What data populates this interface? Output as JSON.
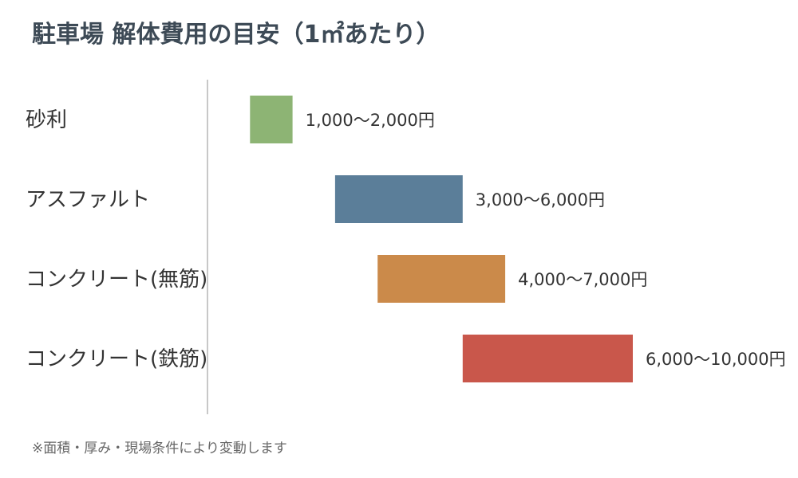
{
  "title": "駐車場 解体費用の目安（1㎡あたり）",
  "note": "※面積・厚み・現場条件により変動します",
  "chart_data": {
    "type": "bar",
    "orientation": "horizontal",
    "style": "floating-range",
    "unit": "円",
    "categories": [
      "砂利",
      "アスファルト",
      "コンクリート(無筋)",
      "コンクリート(鉄筋)"
    ],
    "ranges": [
      [
        1000,
        2000
      ],
      [
        3000,
        6000
      ],
      [
        4000,
        7000
      ],
      [
        6000,
        10000
      ]
    ],
    "labels": [
      "1,000〜2,000円",
      "3,000〜6,000円",
      "4,000〜7,000円",
      "6,000〜10,000円"
    ],
    "colors": [
      "#8db474",
      "#5b7e99",
      "#cb8a4a",
      "#c9574b"
    ],
    "xlim": [
      0,
      11000
    ],
    "grid": false,
    "legend": "none"
  }
}
